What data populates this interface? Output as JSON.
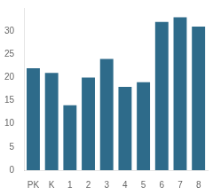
{
  "chart_data": {
    "type": "bar",
    "categories": [
      "PK",
      "K",
      "1",
      "2",
      "3",
      "4",
      "5",
      "6",
      "7",
      "8"
    ],
    "values": [
      22,
      21,
      14,
      20,
      24,
      18,
      19,
      32,
      33,
      31
    ],
    "color": "#2e6b8a",
    "ylim": [
      0,
      35
    ],
    "yticks": [
      0,
      5,
      10,
      15,
      20,
      25,
      30
    ],
    "grid": false
  }
}
